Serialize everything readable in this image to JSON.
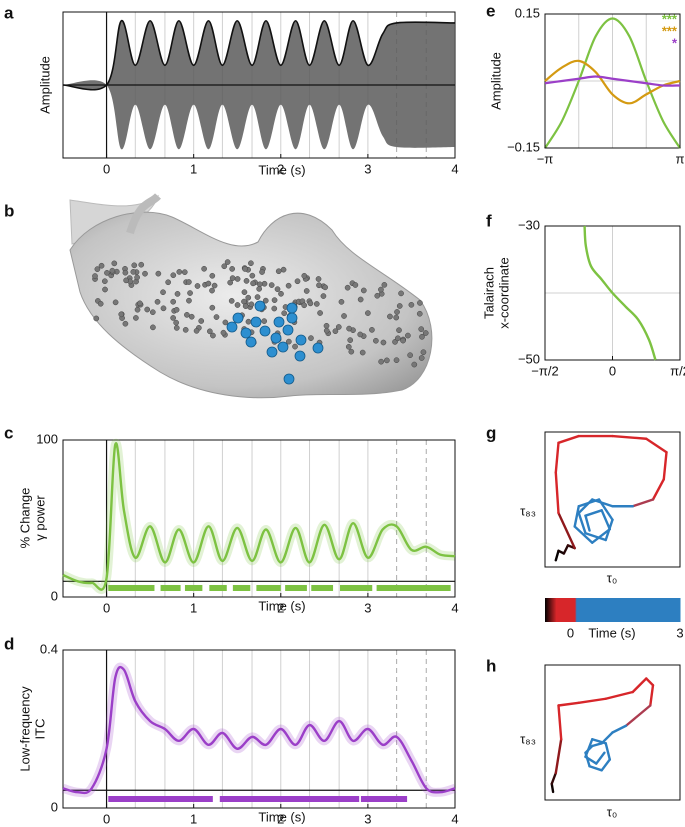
{
  "panel_labels": [
    "a",
    "b",
    "c",
    "d",
    "e",
    "f",
    "g",
    "h"
  ],
  "chart_data": [
    {
      "type": "envelope",
      "xlabel": "Time (s)",
      "ylabel": [
        "Amplitude"
      ],
      "xlim": [
        -0.5,
        4
      ],
      "xticks": [
        0,
        1,
        2,
        3,
        4
      ],
      "ylim": [
        -1,
        1
      ],
      "color": "#111111",
      "fill": "#5a5a5a",
      "x": [
        -0.5,
        0,
        0.17,
        0.33,
        0.5,
        0.67,
        0.83,
        1,
        1.17,
        1.33,
        1.5,
        1.67,
        1.83,
        2,
        2.17,
        2.33,
        2.5,
        2.67,
        2.83,
        3,
        3.17,
        3.33,
        4
      ],
      "values": [
        0,
        0,
        0.88,
        0.27,
        0.88,
        0.27,
        0.88,
        0.27,
        0.88,
        0.27,
        0.88,
        0.27,
        0.88,
        0.27,
        0.88,
        0.27,
        0.88,
        0.27,
        0.88,
        0.27,
        0.7,
        0.85,
        0.85
      ],
      "grid_x": [
        0.33,
        0.67,
        1,
        1.33,
        1.67,
        2,
        2.33,
        2.67,
        3
      ],
      "dashed_x": [
        3.33,
        3.67
      ],
      "vline": 0,
      "hline": 0
    },
    {
      "type": "line",
      "xlabel": "Time (s)",
      "ylabel": [
        "% Change",
        "γ power"
      ],
      "xlim": [
        -0.5,
        4
      ],
      "xticks": [
        0,
        1,
        2,
        3,
        4
      ],
      "ylim": [
        0,
        100
      ],
      "yticks": [
        0,
        100
      ],
      "color": "#7dc242",
      "x": [
        -0.5,
        -0.33,
        -0.17,
        0,
        0.1,
        0.2,
        0.33,
        0.5,
        0.67,
        0.83,
        1,
        1.17,
        1.33,
        1.5,
        1.67,
        1.83,
        2,
        2.17,
        2.33,
        2.5,
        2.67,
        2.83,
        3,
        3.17,
        3.33,
        3.5,
        3.67,
        3.83,
        4
      ],
      "values": [
        14,
        10,
        9,
        12,
        97,
        55,
        25,
        45,
        22,
        43,
        22,
        45,
        23,
        44,
        23,
        43,
        22,
        44,
        22,
        46,
        24,
        47,
        25,
        43,
        45,
        30,
        32,
        27,
        26
      ],
      "sig": [
        [
          0.02,
          0.55
        ],
        [
          0.62,
          0.85
        ],
        [
          0.9,
          1.1
        ],
        [
          1.18,
          1.38
        ],
        [
          1.45,
          1.65
        ],
        [
          1.72,
          2.0
        ],
        [
          2.05,
          2.3
        ],
        [
          2.35,
          2.6
        ],
        [
          2.68,
          3.05
        ],
        [
          3.1,
          3.95
        ]
      ],
      "grid_x": [
        0.33,
        0.67,
        1,
        1.33,
        1.67,
        2,
        2.33,
        2.67,
        3
      ],
      "dashed_x": [
        3.33,
        3.67
      ],
      "vline": 0,
      "hline": 10
    },
    {
      "type": "line",
      "xlabel": "Time (s)",
      "ylabel": [
        "Low-frequency",
        "ITC"
      ],
      "xlim": [
        -0.5,
        4
      ],
      "xticks": [
        0,
        1,
        2,
        3,
        4
      ],
      "ylim": [
        0,
        0.4
      ],
      "yticks": [
        0,
        0.4
      ],
      "color": "#9b3fc8",
      "x": [
        -0.5,
        -0.33,
        -0.17,
        0,
        0.1,
        0.2,
        0.33,
        0.5,
        0.67,
        0.83,
        1,
        1.17,
        1.33,
        1.5,
        1.67,
        1.83,
        2,
        2.17,
        2.33,
        2.5,
        2.67,
        2.83,
        3,
        3.17,
        3.33,
        3.5,
        3.67,
        3.83,
        4
      ],
      "values": [
        0.05,
        0.04,
        0.05,
        0.15,
        0.33,
        0.35,
        0.27,
        0.22,
        0.2,
        0.17,
        0.2,
        0.16,
        0.19,
        0.15,
        0.18,
        0.16,
        0.2,
        0.16,
        0.21,
        0.17,
        0.22,
        0.17,
        0.2,
        0.16,
        0.18,
        0.12,
        0.05,
        0.04,
        0.05
      ],
      "sig": [
        [
          0.02,
          1.22
        ],
        [
          1.3,
          2.9
        ],
        [
          2.92,
          3.45
        ]
      ],
      "grid_x": [
        0.33,
        0.67,
        1,
        1.33,
        1.67,
        2,
        2.33,
        2.67,
        3
      ],
      "dashed_x": [
        3.33,
        3.67
      ],
      "vline": 0,
      "hline": 0.045
    },
    {
      "type": "multiline",
      "ylabel": [
        "Amplitude"
      ],
      "xlim": [
        -3.1416,
        3.1416
      ],
      "xticks": [
        {
          "value": -3.1416,
          "label": "−π"
        },
        {
          "value": 3.1416,
          "label": "π"
        }
      ],
      "ylim": [
        -0.15,
        0.15
      ],
      "yticks": [
        {
          "value": -0.15,
          "label": "−0.15"
        },
        0.15
      ],
      "grid_x": [
        -1.5708,
        0,
        1.5708
      ],
      "grid_y": [
        0
      ],
      "x": [
        -3.1416,
        -2.3562,
        -1.5708,
        -0.7854,
        0,
        0.7854,
        1.5708,
        2.3562,
        3.1416
      ],
      "series": [
        {
          "color": "#7dc242",
          "values": [
            -0.15,
            -0.09,
            0.0,
            0.1,
            0.14,
            0.1,
            0.0,
            -0.09,
            -0.15
          ]
        },
        {
          "color": "#d49a12",
          "values": [
            0.0,
            0.03,
            0.045,
            0.02,
            -0.03,
            -0.05,
            -0.03,
            -0.01,
            0.0
          ]
        },
        {
          "color": "#9b3fc8",
          "values": [
            -0.005,
            0.0,
            0.005,
            0.01,
            0.005,
            0.0,
            -0.005,
            -0.01,
            -0.01
          ]
        }
      ],
      "annotations": [
        {
          "text": "***",
          "color": "#7dc242"
        },
        {
          "text": "***",
          "color": "#d49a12"
        },
        {
          "text": "*",
          "color": "#9b3fc8"
        }
      ]
    },
    {
      "type": "line",
      "ylabel": [
        "Talairach",
        "x-coordinate"
      ],
      "xlim": [
        -1.5708,
        1.5708
      ],
      "xticks": [
        {
          "value": -1.5708,
          "label": "−π/2"
        },
        0,
        {
          "value": 1.5708,
          "label": "π/2"
        }
      ],
      "ylim": [
        -50,
        -30
      ],
      "yticks": [
        {
          "value": -30,
          "label": "−30"
        },
        {
          "value": -50,
          "label": "−50"
        }
      ],
      "grid_x": [
        0
      ],
      "grid_y": [
        -40
      ],
      "color": "#7dc242",
      "x": [
        -0.65,
        -0.62,
        -0.5,
        -0.25,
        0,
        0.3,
        0.6,
        0.85,
        1.0
      ],
      "values": [
        -30,
        -33,
        -36,
        -38,
        -40,
        -42,
        -44,
        -47,
        -50
      ]
    },
    {
      "type": "trajectory",
      "xlabel": "τ₀",
      "ylabel": [
        "τ₈₃"
      ],
      "xlim": [
        0,
        1
      ],
      "ylim": [
        0,
        1
      ],
      "x": [
        0.08,
        0.1,
        0.14,
        0.17,
        0.22,
        0.1,
        0.08,
        0.1,
        0.25,
        0.5,
        0.75,
        0.9,
        0.88,
        0.8,
        0.65,
        0.5,
        0.35,
        0.25,
        0.3,
        0.45,
        0.5,
        0.4,
        0.25,
        0.22,
        0.35,
        0.48,
        0.42,
        0.3,
        0.33
      ],
      "values": [
        0.05,
        0.12,
        0.1,
        0.16,
        0.14,
        0.4,
        0.7,
        0.92,
        0.97,
        0.97,
        0.95,
        0.85,
        0.65,
        0.5,
        0.45,
        0.45,
        0.5,
        0.4,
        0.25,
        0.2,
        0.35,
        0.5,
        0.45,
        0.3,
        0.18,
        0.28,
        0.42,
        0.38,
        0.27
      ],
      "time": [
        -0.7,
        -0.68,
        -0.66,
        -0.64,
        -0.6,
        -0.4,
        -0.3,
        -0.2,
        -0.1,
        0,
        0.03,
        0.06,
        0.09,
        0.12,
        0.14,
        0.5,
        0.7,
        0.9,
        1.1,
        1.3,
        1.5,
        1.7,
        1.9,
        2.1,
        2.3,
        2.5,
        2.7,
        2.85,
        3
      ]
    },
    {
      "type": "colorbar",
      "xlabel": "Time (s)",
      "xlim": [
        -0.7,
        3
      ],
      "xticks": [
        0,
        3
      ],
      "colormap": [
        {
          "value": -0.7,
          "color": "#000000"
        },
        {
          "value": -0.4,
          "color": "#d7262a"
        },
        {
          "value": 0.12,
          "color": "#d7262a"
        },
        {
          "value": 0.16,
          "color": "#2d7fc1"
        },
        {
          "value": 3,
          "color": "#2d7fc1"
        }
      ]
    },
    {
      "type": "trajectory",
      "xlabel": "τ₀",
      "ylabel": [
        "τ₈₃"
      ],
      "xlim": [
        0,
        1
      ],
      "ylim": [
        0,
        1
      ],
      "x": [
        0.06,
        0.05,
        0.08,
        0.12,
        0.1,
        0.25,
        0.45,
        0.65,
        0.75,
        0.8,
        0.78,
        0.6,
        0.5,
        0.42,
        0.35,
        0.3,
        0.33,
        0.42,
        0.48,
        0.45,
        0.35,
        0.3,
        0.38,
        0.44
      ],
      "values": [
        0.06,
        0.12,
        0.2,
        0.45,
        0.7,
        0.72,
        0.75,
        0.8,
        0.9,
        0.85,
        0.7,
        0.55,
        0.5,
        0.42,
        0.4,
        0.35,
        0.25,
        0.22,
        0.3,
        0.42,
        0.45,
        0.32,
        0.27,
        0.35
      ],
      "time": [
        -0.7,
        -0.66,
        -0.6,
        -0.4,
        -0.25,
        -0.1,
        0,
        0.04,
        0.07,
        0.1,
        0.12,
        0.14,
        0.6,
        0.8,
        1.0,
        1.25,
        1.5,
        1.75,
        2.0,
        2.25,
        2.5,
        2.7,
        2.85,
        3
      ]
    }
  ]
}
